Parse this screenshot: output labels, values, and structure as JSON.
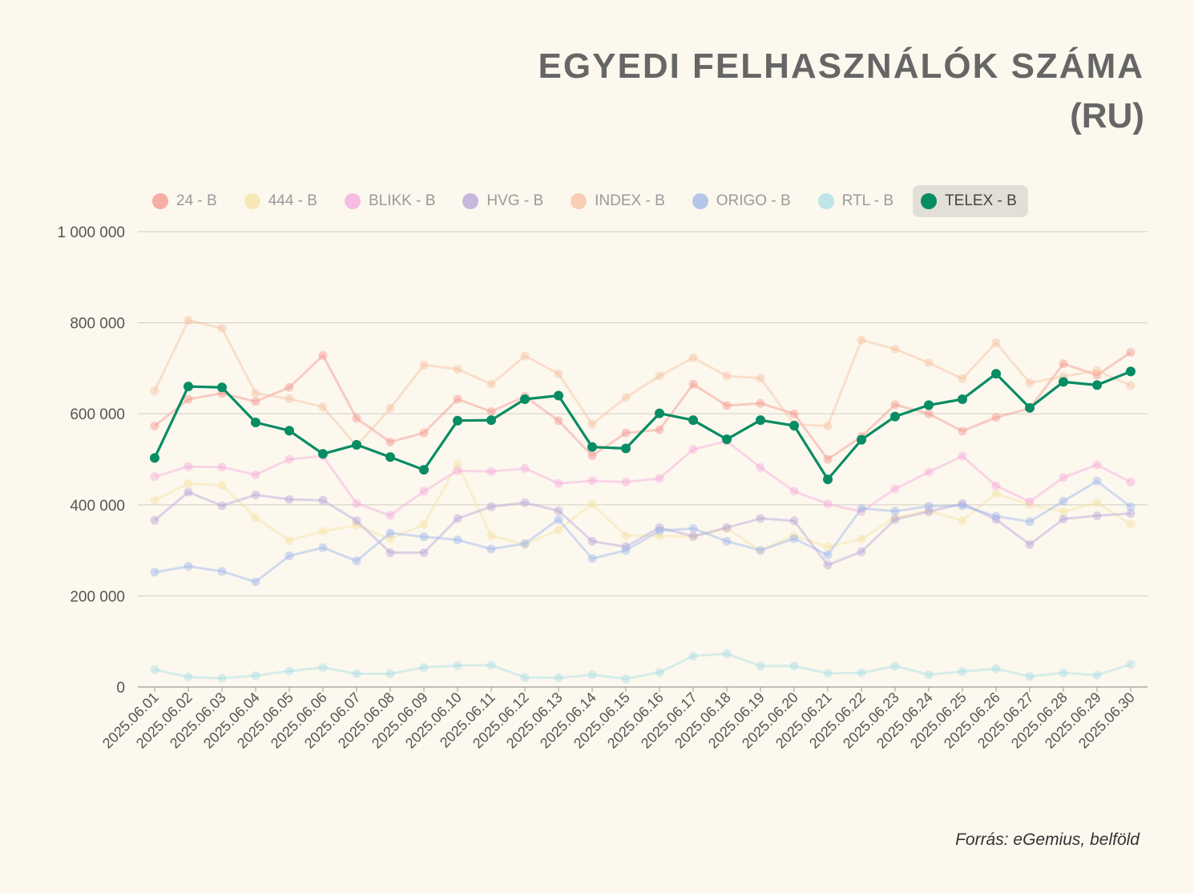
{
  "title": "EGYEDI FELHASZNÁLÓK SZÁMA",
  "subtitle": "(RU)",
  "source": "Forrás: eGemius, belföld",
  "highlighted_series": "TELEX - B",
  "chart_data": {
    "type": "line",
    "title": "EGYEDI FELHASZNÁLÓK SZÁMA",
    "subtitle": "(RU)",
    "xlabel": "",
    "ylabel": "",
    "ylim": [
      0,
      1000000
    ],
    "yticks": [
      0,
      200000,
      400000,
      600000,
      800000,
      1000000
    ],
    "ytick_labels": [
      "0",
      "200 000",
      "400 000",
      "600 000",
      "800 000",
      "1 000 000"
    ],
    "grid": true,
    "legend_position": "top",
    "categories": [
      "2025.06.01",
      "2025.06.02",
      "2025.06.03",
      "2025.06.04",
      "2025.06.05",
      "2025.06.06",
      "2025.06.07",
      "2025.06.08",
      "2025.06.09",
      "2025.06.10",
      "2025.06.11",
      "2025.06.12",
      "2025.06.13",
      "2025.06.14",
      "2025.06.15",
      "2025.06.16",
      "2025.06.17",
      "2025.06.18",
      "2025.06.19",
      "2025.06.20",
      "2025.06.21",
      "2025.06.22",
      "2025.06.23",
      "2025.06.24",
      "2025.06.25",
      "2025.06.26",
      "2025.06.27",
      "2025.06.28",
      "2025.06.29",
      "2025.06.30"
    ],
    "series": [
      {
        "name": "24 - B",
        "color": "#f4958c",
        "values": [
          573000,
          632000,
          645000,
          627000,
          658000,
          728000,
          590000,
          538000,
          558000,
          632000,
          605000,
          638000,
          585000,
          508000,
          558000,
          565000,
          665000,
          618000,
          623000,
          600000,
          500000,
          550000,
          620000,
          600000,
          562000,
          592000,
          612000,
          710000,
          685000,
          735000
        ]
      },
      {
        "name": "444 - B",
        "color": "#f6e3a1",
        "values": [
          410000,
          447000,
          443000,
          372000,
          322000,
          342000,
          355000,
          325000,
          357000,
          490000,
          332000,
          313000,
          345000,
          402000,
          332000,
          332000,
          330000,
          348000,
          300000,
          332000,
          308000,
          325000,
          372000,
          387000,
          365000,
          425000,
          400000,
          385000,
          405000,
          357000
        ]
      },
      {
        "name": "BLIKK - B",
        "color": "#f6aadb",
        "values": [
          462000,
          484000,
          483000,
          466000,
          500000,
          507000,
          403000,
          377000,
          430000,
          475000,
          473000,
          480000,
          447000,
          453000,
          450000,
          458000,
          522000,
          540000,
          482000,
          430000,
          402000,
          385000,
          435000,
          472000,
          507000,
          442000,
          407000,
          460000,
          488000,
          450000
        ]
      },
      {
        "name": "HVG - B",
        "color": "#b7a3d8",
        "values": [
          366000,
          428000,
          398000,
          422000,
          412000,
          410000,
          365000,
          295000,
          295000,
          370000,
          396000,
          405000,
          387000,
          320000,
          308000,
          350000,
          331000,
          350000,
          370000,
          365000,
          268000,
          297000,
          368000,
          385000,
          403000,
          368000,
          313000,
          369000,
          376000,
          381000
        ]
      },
      {
        "name": "INDEX - B",
        "color": "#f7c2a0",
        "values": [
          650000,
          805000,
          788000,
          645000,
          633000,
          615000,
          530000,
          612000,
          707000,
          698000,
          665000,
          727000,
          688000,
          577000,
          636000,
          683000,
          723000,
          683000,
          678000,
          577000,
          573000,
          762000,
          742000,
          712000,
          677000,
          756000,
          668000,
          682000,
          695000,
          662000
        ]
      },
      {
        "name": "ORIGO - B",
        "color": "#9db5ea",
        "values": [
          252000,
          265000,
          254000,
          231000,
          288000,
          306000,
          277000,
          338000,
          330000,
          323000,
          303000,
          315000,
          368000,
          282000,
          300000,
          343000,
          348000,
          320000,
          300000,
          326000,
          290000,
          392000,
          386000,
          397000,
          398000,
          375000,
          363000,
          408000,
          452000,
          396000
        ]
      },
      {
        "name": "RTL - B",
        "color": "#a9dde5",
        "values": [
          38000,
          22000,
          19000,
          25000,
          35000,
          43000,
          29000,
          29000,
          43000,
          47000,
          48000,
          21000,
          20000,
          27000,
          18000,
          32000,
          68000,
          73000,
          46000,
          46000,
          30000,
          31000,
          46000,
          27000,
          34000,
          40000,
          23000,
          31000,
          26000,
          50000
        ]
      },
      {
        "name": "TELEX - B",
        "color": "#088c64",
        "values": [
          503000,
          660000,
          658000,
          581000,
          563000,
          512000,
          532000,
          505000,
          477000,
          585000,
          586000,
          632000,
          640000,
          527000,
          524000,
          601000,
          586000,
          544000,
          586000,
          574000,
          456000,
          543000,
          594000,
          619000,
          632000,
          688000,
          613000,
          670000,
          663000,
          693000
        ]
      }
    ]
  }
}
